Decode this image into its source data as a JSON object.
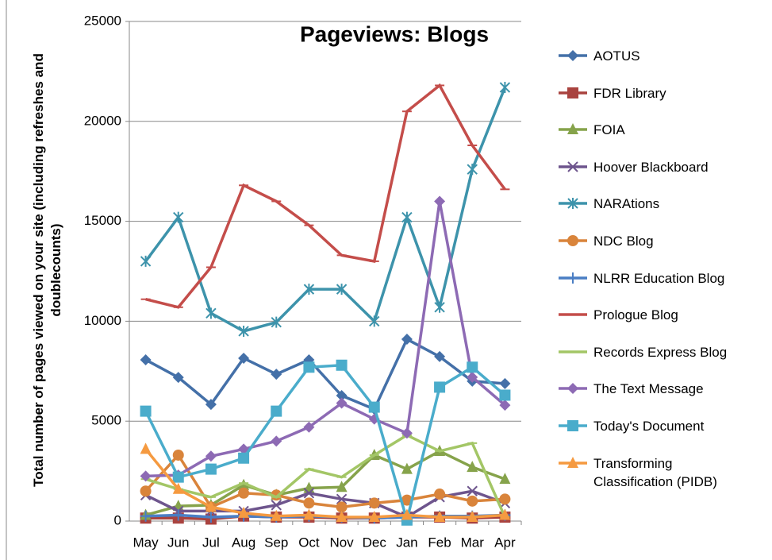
{
  "chart_data": {
    "type": "line",
    "title": "Pageviews: Blogs",
    "y_label": "Total number of pages viewed on your site (including refreshes and doublecounts)",
    "categories": [
      "May",
      "Jun",
      "Jul",
      "Aug",
      "Sep",
      "Oct",
      "Nov",
      "Dec",
      "Jan",
      "Feb",
      "Mar",
      "Apr"
    ],
    "ylim": [
      0,
      25000
    ],
    "yticks": [
      0,
      5000,
      10000,
      15000,
      20000,
      25000
    ],
    "grid": true,
    "legend": "right",
    "series": [
      {
        "name": "AOTUS",
        "color": "#4470a8",
        "marker": "diamond",
        "values": [
          8070,
          7190,
          5840,
          8150,
          7350,
          8070,
          6280,
          5600,
          9100,
          8230,
          7000,
          6880
        ]
      },
      {
        "name": "FDR Library",
        "color": "#a9433f",
        "marker": "square",
        "values": [
          150,
          150,
          100,
          250,
          200,
          200,
          150,
          150,
          200,
          200,
          150,
          200
        ]
      },
      {
        "name": "FOIA",
        "color": "#86a34b",
        "marker": "triangle",
        "values": [
          300,
          750,
          800,
          1800,
          1300,
          1650,
          1700,
          3300,
          2600,
          3500,
          2700,
          2100
        ]
      },
      {
        "name": "Hoover Blackboard",
        "color": "#6e558d",
        "marker": "x",
        "values": [
          1300,
          500,
          500,
          500,
          800,
          1400,
          1100,
          900,
          200,
          1200,
          1500,
          900
        ]
      },
      {
        "name": "NARAtions",
        "color": "#3d93ab",
        "marker": "star",
        "values": [
          13000,
          15200,
          10400,
          9500,
          9950,
          11600,
          11600,
          10000,
          15200,
          10700,
          17600,
          21700
        ]
      },
      {
        "name": "NDC Blog",
        "color": "#d9843b",
        "marker": "circle",
        "values": [
          1500,
          3300,
          700,
          1400,
          1300,
          900,
          700,
          900,
          1050,
          1350,
          1000,
          1100
        ]
      },
      {
        "name": "NLRR Education Blog",
        "color": "#4a7ec4",
        "marker": "plus",
        "values": [
          250,
          300,
          200,
          250,
          200,
          250,
          200,
          150,
          200,
          250,
          250,
          300
        ]
      },
      {
        "name": "Prologue Blog",
        "color": "#c44d4a",
        "marker": "dash",
        "values": [
          11100,
          10700,
          12700,
          16800,
          16000,
          14800,
          13300,
          13000,
          20500,
          21800,
          18800,
          16600
        ]
      },
      {
        "name": "Records Express Blog",
        "color": "#a3c666",
        "marker": "dash",
        "values": [
          2100,
          1600,
          1200,
          1900,
          1200,
          2600,
          2200,
          3300,
          4300,
          3500,
          3900,
          200
        ]
      },
      {
        "name": "The Text Message",
        "color": "#8d6ab4",
        "marker": "diamond",
        "values": [
          2250,
          2300,
          3250,
          3600,
          4000,
          4700,
          5900,
          5100,
          4400,
          16000,
          7200,
          5800
        ]
      },
      {
        "name": "Today's Document",
        "color": "#4aaccb",
        "marker": "square",
        "values": [
          5500,
          2200,
          2600,
          3150,
          5500,
          7700,
          7800,
          5700,
          50,
          6700,
          7700,
          6300
        ]
      },
      {
        "name": "Transforming Classification (PIDB)",
        "color": "#f59a40",
        "marker": "triangle",
        "values": [
          3600,
          1600,
          700,
          400,
          250,
          300,
          200,
          200,
          300,
          200,
          200,
          300
        ]
      }
    ]
  }
}
